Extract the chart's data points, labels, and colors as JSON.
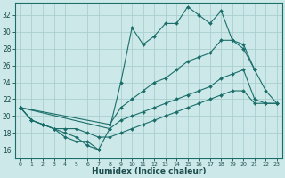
{
  "xlabel": "Humidex (Indice chaleur)",
  "bg_color": "#cce8e8",
  "line_color": "#1a6e6a",
  "grid_color": "#aacece",
  "xlim": [
    -0.5,
    23.5
  ],
  "ylim": [
    15.0,
    33.5
  ],
  "yticks": [
    16,
    18,
    20,
    22,
    24,
    26,
    28,
    30,
    32
  ],
  "xticks": [
    0,
    1,
    2,
    3,
    4,
    5,
    6,
    7,
    8,
    9,
    10,
    11,
    12,
    13,
    14,
    15,
    16,
    17,
    18,
    19,
    20,
    21,
    22,
    23
  ],
  "series": [
    {
      "x": [
        0,
        1,
        2,
        3,
        4,
        5,
        6,
        7,
        8,
        9,
        10,
        11,
        12,
        13,
        14,
        15,
        16,
        17,
        18,
        19,
        20,
        21
      ],
      "y": [
        21.0,
        19.5,
        19.0,
        18.5,
        18.0,
        17.5,
        16.5,
        16.0,
        18.5,
        24.0,
        30.5,
        28.5,
        29.5,
        31.0,
        31.0,
        33.0,
        32.0,
        31.0,
        32.5,
        29.0,
        28.0,
        25.5
      ]
    },
    {
      "x": [
        0,
        8,
        9,
        10,
        11,
        12,
        13,
        14,
        15,
        16,
        17,
        18,
        19,
        20,
        21,
        22,
        23
      ],
      "y": [
        21.0,
        19.0,
        21.0,
        22.0,
        23.0,
        24.0,
        24.5,
        25.5,
        26.5,
        27.0,
        27.5,
        29.0,
        29.0,
        28.5,
        25.5,
        23.0,
        21.5
      ]
    },
    {
      "x": [
        0,
        8,
        9,
        10,
        11,
        12,
        13,
        14,
        15,
        16,
        17,
        18,
        19,
        20,
        21,
        22,
        23
      ],
      "y": [
        21.0,
        18.5,
        19.5,
        20.0,
        20.5,
        21.0,
        21.5,
        22.0,
        22.5,
        23.0,
        23.5,
        24.5,
        25.0,
        25.5,
        22.0,
        21.5,
        21.5
      ]
    },
    {
      "x": [
        0,
        1,
        2,
        3,
        4,
        5,
        6,
        7,
        8,
        9,
        10,
        11,
        12,
        13,
        14,
        15,
        16,
        17,
        18,
        19,
        20,
        21,
        22,
        23
      ],
      "y": [
        21.0,
        19.5,
        19.0,
        18.5,
        18.5,
        18.5,
        18.0,
        17.5,
        17.5,
        18.0,
        18.5,
        19.0,
        19.5,
        20.0,
        20.5,
        21.0,
        21.5,
        22.0,
        22.5,
        23.0,
        23.0,
        21.5,
        21.5,
        21.5
      ]
    },
    {
      "x": [
        0,
        1,
        2,
        3,
        4,
        5,
        6,
        7
      ],
      "y": [
        21.0,
        19.5,
        19.0,
        18.5,
        17.5,
        17.0,
        17.0,
        16.0
      ]
    }
  ]
}
